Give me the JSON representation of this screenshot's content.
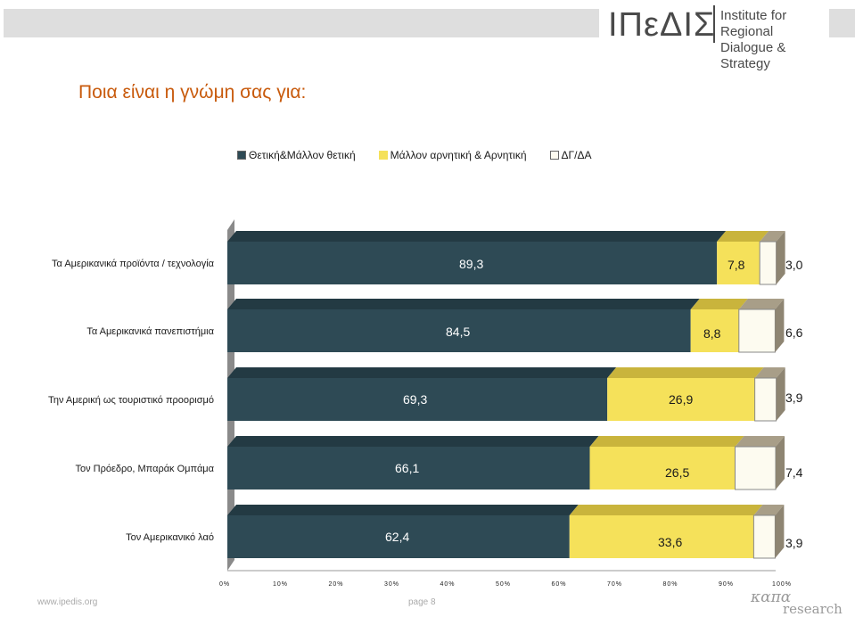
{
  "header": {
    "logo_mark": "ΙΠεΔΙΣ",
    "logo_line1": "Institute for Regional",
    "logo_line2": "Dialogue & Strategy"
  },
  "page_title": "Ποια είναι η γνώμη σας για:",
  "footer": {
    "url": "www.ipedis.org",
    "page": "page 8",
    "brand_main": "καπα",
    "brand_sub": "research"
  },
  "colors": {
    "positive": "#2e4a55",
    "negative": "#f5e15a",
    "dk": "#fdfbf0",
    "background": "#ffffff"
  },
  "chart_data": {
    "type": "bar",
    "orientation": "horizontal",
    "stacked": true,
    "percent_stacked": true,
    "categories": [
      "Τα Αμερικανικά προϊόντα / τεχνολογία",
      "Τα Αμερικανικά πανεπιστήμια",
      "Την Αμερική ως τουριστικό προορισμό",
      "Τον Πρόεδρο, Μπαράκ Ομπάμα",
      "Τον Αμερικανικό λαό"
    ],
    "series": [
      {
        "name": "Θετική&Μάλλον θετική",
        "values": [
          89.3,
          84.5,
          69.3,
          66.1,
          62.4
        ],
        "labels": [
          "89,3",
          "84,5",
          "69,3",
          "66,1",
          "62,4"
        ]
      },
      {
        "name": "Μάλλον αρνητική & Αρνητική",
        "values": [
          7.8,
          8.8,
          26.9,
          26.5,
          33.6
        ],
        "labels": [
          "7,8",
          "8,8",
          "26,9",
          "26,5",
          "33,6"
        ]
      },
      {
        "name": "ΔΓ/ΔΑ",
        "values": [
          3.0,
          6.6,
          3.9,
          7.4,
          3.9
        ],
        "labels": [
          "3,0",
          "6,6",
          "3,9",
          "7,4",
          "3,9"
        ]
      }
    ],
    "xticks": [
      "0%",
      "10%",
      "20%",
      "30%",
      "40%",
      "50%",
      "60%",
      "70%",
      "80%",
      "90%",
      "100%"
    ],
    "xlim": [
      0,
      100
    ],
    "legend_position": "top",
    "three_d": true
  }
}
